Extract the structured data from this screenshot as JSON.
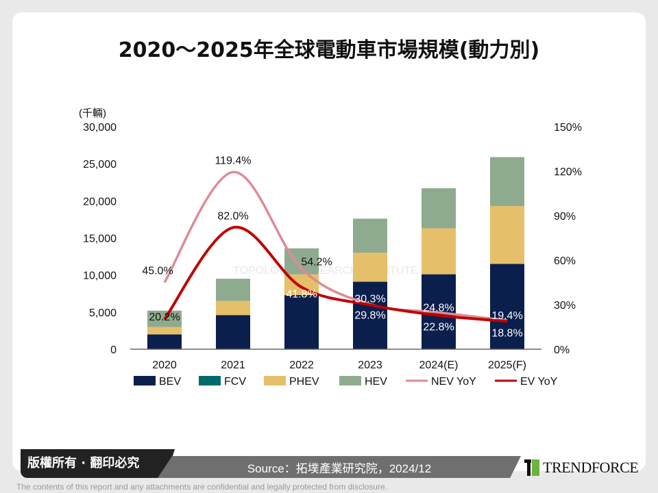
{
  "title": "2020～2025年全球電動車市場規模(動力別)",
  "footer": {
    "copyright": "版權所有 · 翻印必究",
    "source": "Source：拓墣產業研究院，2024/12",
    "brand": "TRENDFORCE",
    "disclaimer": "The contents of this report and any attachments are confidential and legally protected from disclosure.",
    "watermark": "TOPOLOGY RESEARCH INSTITUTE"
  },
  "chart_data": {
    "type": "bar",
    "stacked": true,
    "title": "2020～2025年全球電動車市場規模(動力別)",
    "ylabel": "(千輛)",
    "ylim": [
      0,
      30000
    ],
    "y2lim": [
      0,
      1.5
    ],
    "yticks": [
      "0",
      "5,000",
      "10,000",
      "15,000",
      "20,000",
      "25,000",
      "30,000"
    ],
    "y2ticks": [
      "0%",
      "30%",
      "60%",
      "90%",
      "120%",
      "150%"
    ],
    "categories": [
      "2020",
      "2021",
      "2022",
      "2023",
      "2024(E)",
      "2025(F)"
    ],
    "legend_position": "bottom",
    "series": [
      {
        "name": "BEV",
        "color": "#0b1f4d",
        "values": [
          2000,
          4600,
          7300,
          9100,
          10100,
          11500
        ]
      },
      {
        "name": "FCV",
        "color": "#006b6b",
        "values": [
          0,
          0,
          0,
          0,
          0,
          0
        ]
      },
      {
        "name": "PHEV",
        "color": "#e5bf69",
        "values": [
          1000,
          1900,
          2800,
          3900,
          6200,
          7800
        ]
      },
      {
        "name": "HEV",
        "color": "#8fab8f",
        "values": [
          2200,
          3000,
          3500,
          4600,
          5400,
          6600
        ]
      }
    ],
    "lines": [
      {
        "name": "NEV YoY",
        "color": "#e08a96",
        "axis": "right",
        "values": [
          45.0,
          119.4,
          54.2,
          30.3,
          24.8,
          19.4
        ],
        "labels": [
          "45.0%",
          "119.4%",
          "54.2%",
          "30.3%",
          "24.8%",
          "19.4%"
        ]
      },
      {
        "name": "EV YoY",
        "color": "#c00000",
        "axis": "right",
        "values": [
          20.2,
          82.0,
          41.8,
          29.8,
          22.8,
          18.8
        ],
        "labels": [
          "20.2%",
          "82.0%",
          "41.8%",
          "29.8%",
          "22.8%",
          "18.8%"
        ]
      }
    ]
  }
}
